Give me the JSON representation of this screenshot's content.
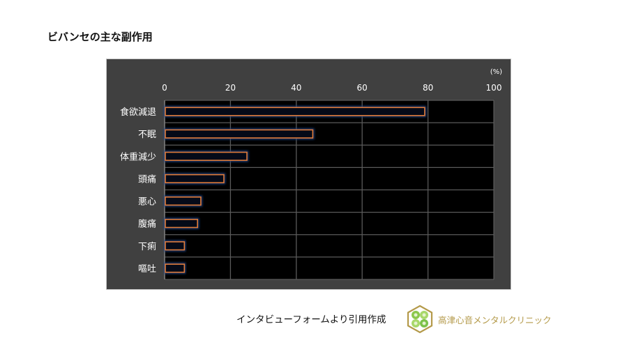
{
  "page": {
    "title": "ビバンセの主な副作用",
    "source_note": "インタビューフォームより引用作成",
    "clinic_name": "高津心音メンタルクリニック"
  },
  "colors": {
    "panel_bg": "#404040",
    "plot_bg": "#000000",
    "bar_edge": "#e07b39",
    "bar_glow": "#1f3f80",
    "grid": "#5a5a5a",
    "text": "#ffffff",
    "logo_gold": "#b49a4a",
    "logo_green": "#7cc24a"
  },
  "chart_data": {
    "type": "bar",
    "orientation": "horizontal",
    "title": "ビバンセの主な副作用",
    "unit_label": "(%)",
    "categories": [
      "食欲減退",
      "不眠",
      "体重減少",
      "頭痛",
      "悪心",
      "腹痛",
      "下痢",
      "嘔吐"
    ],
    "values": [
      79,
      45,
      25,
      18,
      11,
      10,
      6,
      6
    ],
    "xlim": [
      0,
      100
    ],
    "x_ticks": [
      "0",
      "20",
      "40",
      "60",
      "80",
      "100"
    ],
    "x_tick_values": [
      0,
      20,
      40,
      60,
      80,
      100
    ],
    "xaxis_position": "top",
    "grid": true,
    "xlabel": "",
    "ylabel": ""
  }
}
